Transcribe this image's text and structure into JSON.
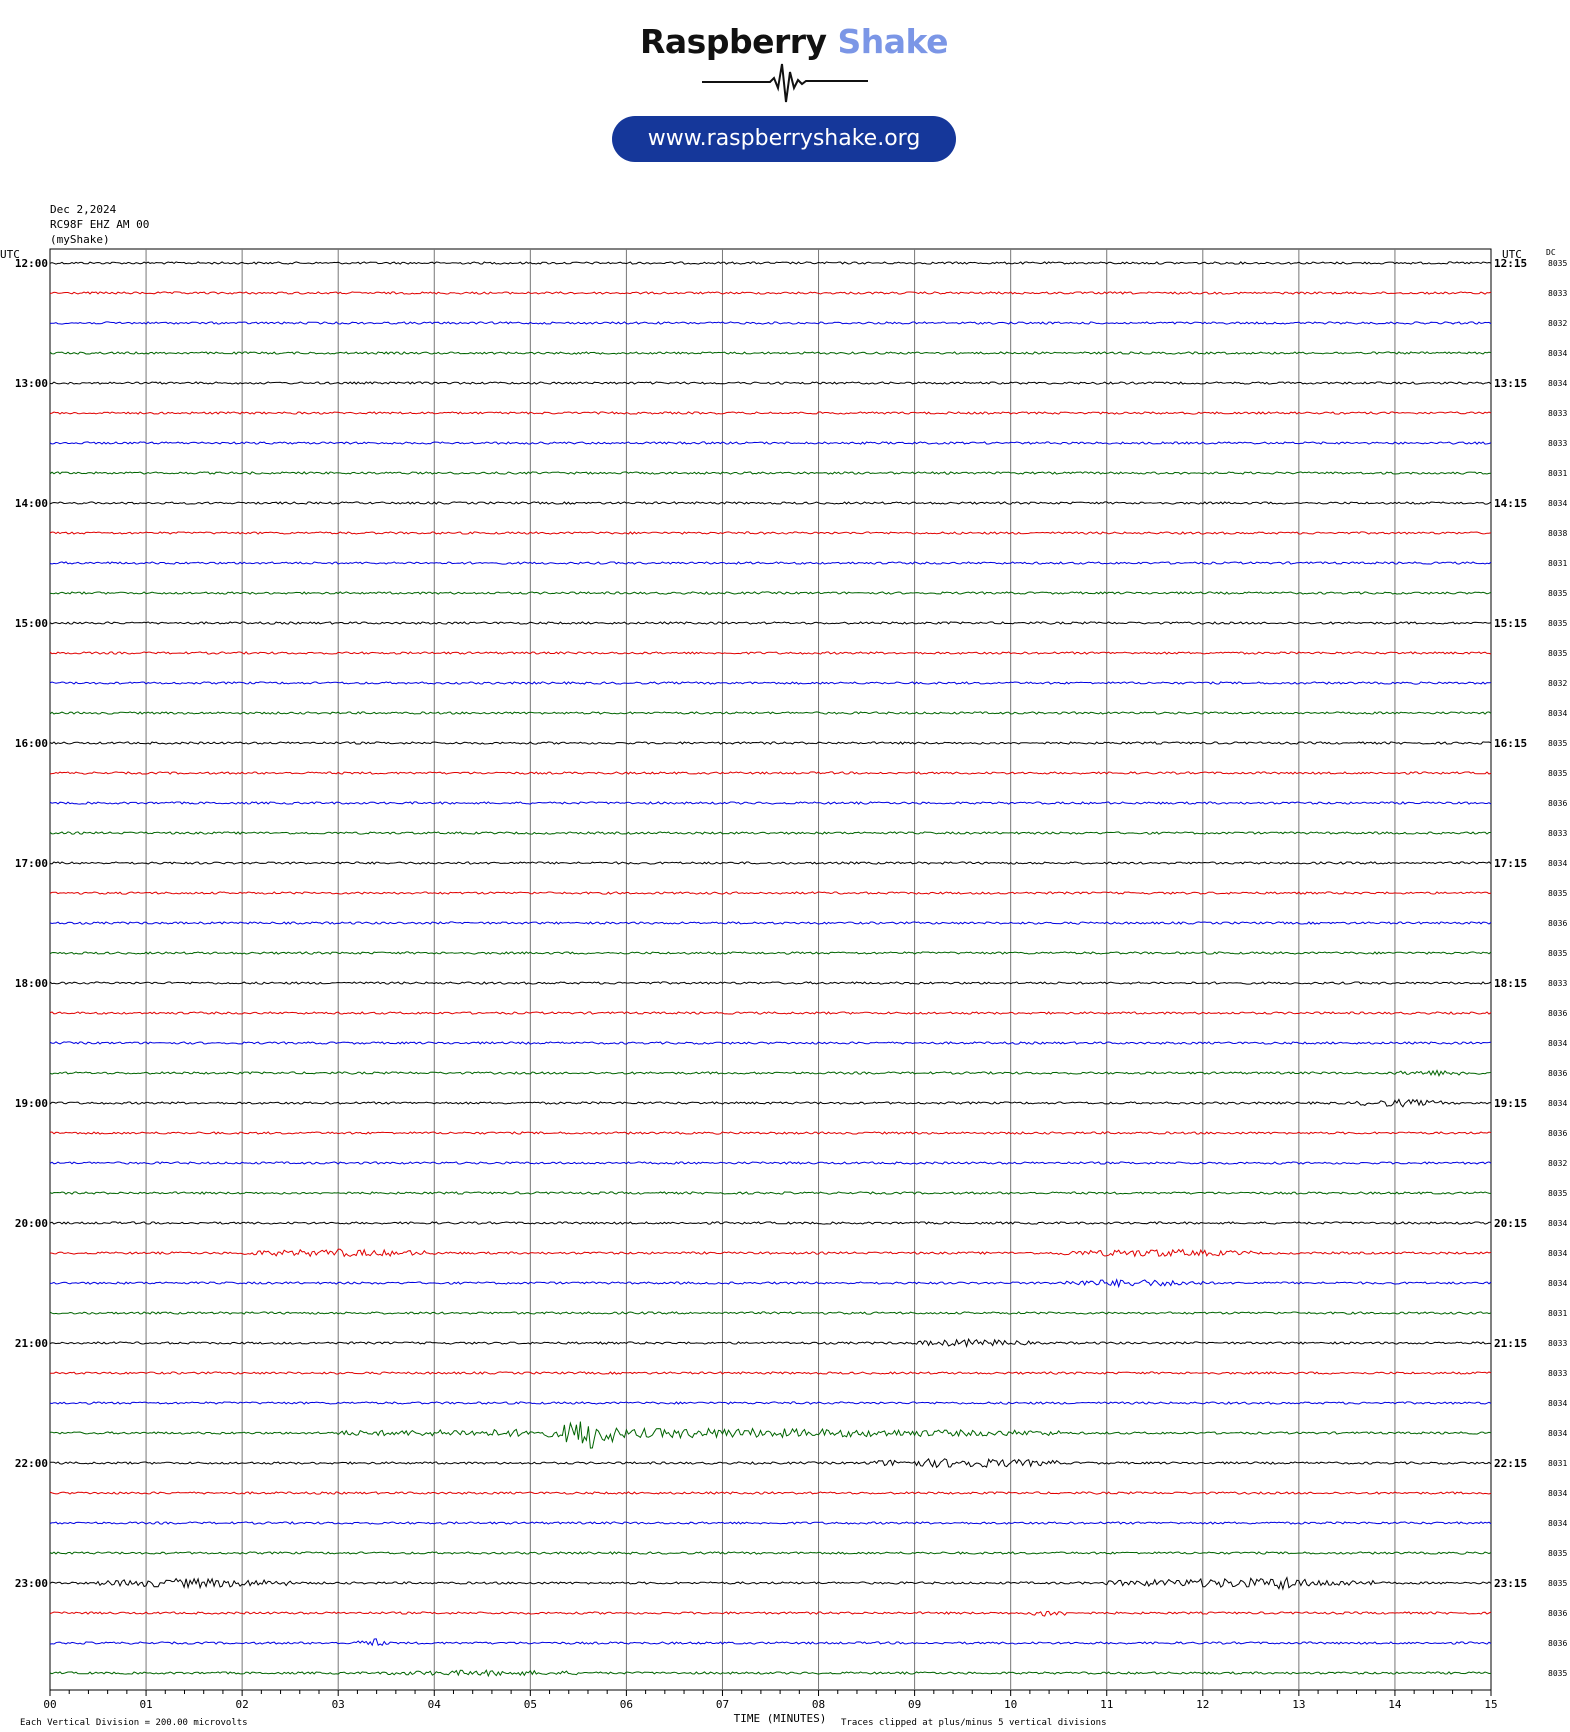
{
  "branding": {
    "name_part1": "Raspberry",
    "name_part2": "Shake",
    "name_color1": "#111111",
    "name_color2": "#7b96e6",
    "url": "www.raspberryshake.org",
    "url_bg": "#15379a"
  },
  "header": {
    "date": "Dec 2,2024",
    "station": "RC98F EHZ AM 00",
    "network": "(myShake)"
  },
  "labels": {
    "utc_left": "UTC",
    "utc_right": "UTC",
    "dc": "DC",
    "xlabel": "TIME (MINUTES)",
    "scale_note": "Each Vertical Division =  200.00 microvolts",
    "clip_note": "Traces clipped at plus/minus 5 vertical divisions"
  },
  "chart_data": {
    "type": "line",
    "xlabel": "TIME (MINUTES)",
    "xlim": [
      0,
      15
    ],
    "x_ticks": [
      "00",
      "01",
      "02",
      "03",
      "04",
      "05",
      "06",
      "07",
      "08",
      "09",
      "10",
      "11",
      "12",
      "13",
      "14",
      "15"
    ],
    "trace_colors": [
      "#000000",
      "#e00000",
      "#0000e0",
      "#006400"
    ],
    "row_minutes": 15,
    "rows_left_labels": [
      "12:00",
      "",
      "",
      "",
      "13:00",
      "",
      "",
      "",
      "14:00",
      "",
      "",
      "",
      "15:00",
      "",
      "",
      "",
      "16:00",
      "",
      "",
      "",
      "17:00",
      "",
      "",
      "",
      "18:00",
      "",
      "",
      "",
      "19:00",
      "",
      "",
      "",
      "20:00",
      "",
      "",
      "",
      "21:00",
      "",
      "",
      "",
      "22:00",
      "",
      "",
      "",
      "23:00",
      "",
      "",
      ""
    ],
    "rows_right_labels": [
      "12:15",
      "",
      "",
      "",
      "13:15",
      "",
      "",
      "",
      "14:15",
      "",
      "",
      "",
      "15:15",
      "",
      "",
      "",
      "16:15",
      "",
      "",
      "",
      "17:15",
      "",
      "",
      "",
      "18:15",
      "",
      "",
      "",
      "19:15",
      "",
      "",
      "",
      "20:15",
      "",
      "",
      "",
      "21:15",
      "",
      "",
      "",
      "22:15",
      "",
      "",
      "",
      "23:15",
      "",
      "",
      ""
    ],
    "dc_offsets": [
      "8035",
      "8033",
      "8032",
      "8034",
      "8034",
      "8033",
      "8033",
      "8031",
      "8034",
      "8038",
      "8031",
      "8035",
      "8035",
      "8035",
      "8032",
      "8034",
      "8035",
      "8035",
      "8036",
      "8033",
      "8034",
      "8035",
      "8036",
      "8035",
      "8033",
      "8036",
      "8034",
      "8036",
      "8034",
      "8036",
      "8032",
      "8035",
      "8034",
      "8034",
      "8034",
      "8031",
      "8033",
      "8033",
      "8034",
      "8034",
      "8031",
      "8034",
      "8034",
      "8035",
      "8035",
      "8036",
      "8036",
      "8035"
    ],
    "events": [
      {
        "row": 27,
        "start_min": 14.0,
        "end_min": 14.9,
        "amp": 3
      },
      {
        "row": 28,
        "start_min": 13.6,
        "end_min": 14.5,
        "amp": 4
      },
      {
        "row": 33,
        "start_min": 2.0,
        "end_min": 4.0,
        "amp": 4
      },
      {
        "row": 33,
        "start_min": 10.5,
        "end_min": 12.5,
        "amp": 4
      },
      {
        "row": 34,
        "start_min": 10.5,
        "end_min": 12.0,
        "amp": 4
      },
      {
        "row": 36,
        "start_min": 9.0,
        "end_min": 10.2,
        "amp": 4
      },
      {
        "row": 39,
        "start_min": 3.0,
        "end_min": 10.5,
        "amp": 5
      },
      {
        "row": 39,
        "start_min": 5.3,
        "end_min": 5.9,
        "amp": 18
      },
      {
        "row": 40,
        "start_min": 8.5,
        "end_min": 10.5,
        "amp": 5
      },
      {
        "row": 44,
        "start_min": 0.5,
        "end_min": 2.5,
        "amp": 5
      },
      {
        "row": 44,
        "start_min": 11.0,
        "end_min": 13.8,
        "amp": 5
      },
      {
        "row": 44,
        "start_min": 12.7,
        "end_min": 13.0,
        "amp": 9
      },
      {
        "row": 45,
        "start_min": 10.2,
        "end_min": 10.6,
        "amp": 4
      },
      {
        "row": 46,
        "start_min": 3.2,
        "end_min": 3.5,
        "amp": 5
      },
      {
        "row": 47,
        "start_min": 3.5,
        "end_min": 5.5,
        "amp": 3
      }
    ]
  }
}
